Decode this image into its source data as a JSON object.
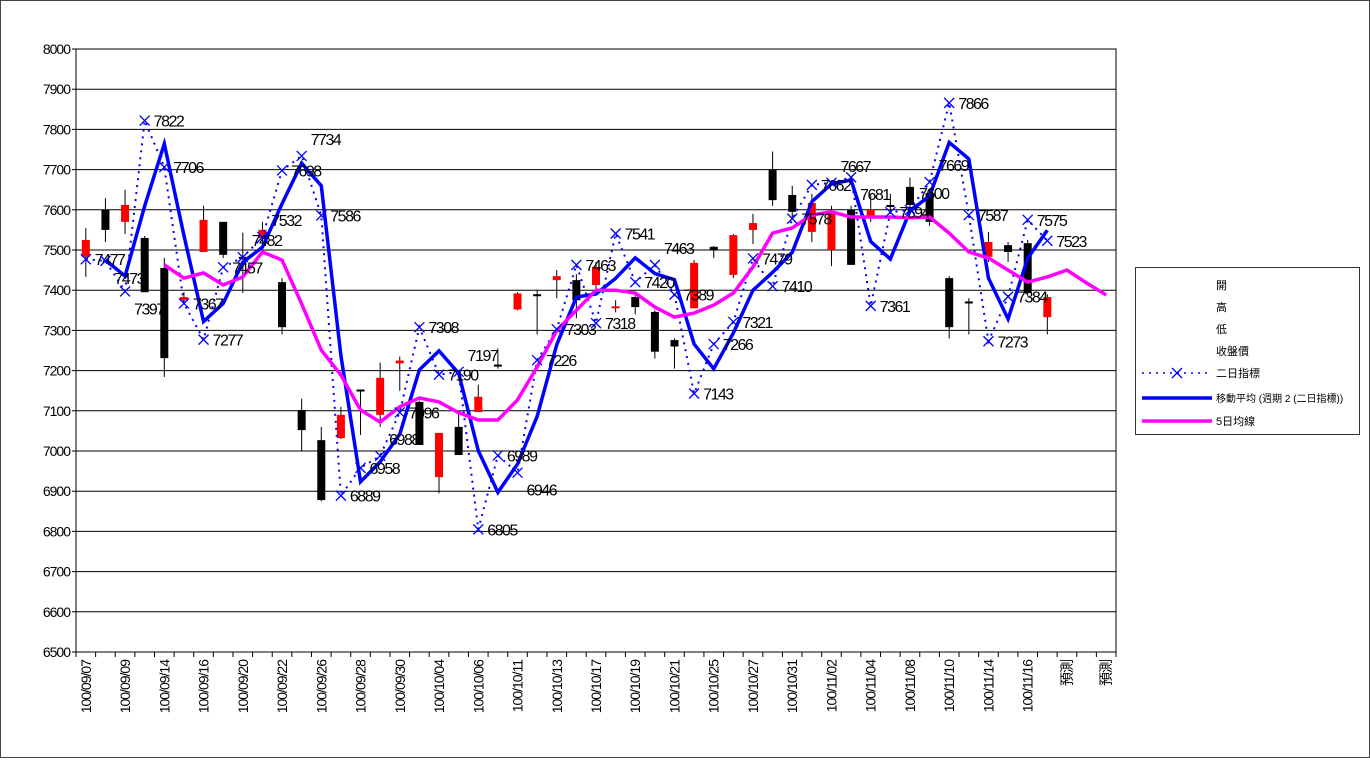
{
  "chart_data": {
    "type": "candlestick",
    "title": "",
    "ylim": [
      6500,
      8000
    ],
    "y_ticks": [
      "6500",
      "6600",
      "6700",
      "6800",
      "6900",
      "7000",
      "7100",
      "7200",
      "7300",
      "7400",
      "7500",
      "7600",
      "7700",
      "7800",
      "7900",
      "8000"
    ],
    "grid": true,
    "category_count": 53,
    "x_tick_labels": [
      {
        "index": 0,
        "label": "100/09/07"
      },
      {
        "index": 2,
        "label": "100/09/09"
      },
      {
        "index": 4,
        "label": "100/09/14"
      },
      {
        "index": 6,
        "label": "100/09/16"
      },
      {
        "index": 8,
        "label": "100/09/20"
      },
      {
        "index": 10,
        "label": "100/09/22"
      },
      {
        "index": 12,
        "label": "100/09/26"
      },
      {
        "index": 14,
        "label": "100/09/28"
      },
      {
        "index": 16,
        "label": "100/09/30"
      },
      {
        "index": 18,
        "label": "100/10/04"
      },
      {
        "index": 20,
        "label": "100/10/06"
      },
      {
        "index": 22,
        "label": "100/10/11"
      },
      {
        "index": 24,
        "label": "100/10/13"
      },
      {
        "index": 26,
        "label": "100/10/17"
      },
      {
        "index": 28,
        "label": "100/10/19"
      },
      {
        "index": 30,
        "label": "100/10/21"
      },
      {
        "index": 32,
        "label": "100/10/25"
      },
      {
        "index": 34,
        "label": "100/10/27"
      },
      {
        "index": 36,
        "label": "100/10/31"
      },
      {
        "index": 38,
        "label": "100/11/02"
      },
      {
        "index": 40,
        "label": "100/11/04"
      },
      {
        "index": 42,
        "label": "100/11/08"
      },
      {
        "index": 44,
        "label": "100/11/10"
      },
      {
        "index": 46,
        "label": "100/11/14"
      },
      {
        "index": 48,
        "label": "100/11/16"
      },
      {
        "index": 50,
        "label": "預測"
      },
      {
        "index": 52,
        "label": "預測"
      }
    ],
    "ohlc": [
      [
        7483,
        7555,
        7433,
        7525
      ],
      [
        7600,
        7629,
        7520,
        7550
      ],
      [
        7570,
        7650,
        7540,
        7612
      ],
      [
        7530,
        7535,
        7395,
        7395
      ],
      [
        7455,
        7480,
        7184,
        7231
      ],
      [
        7375,
        7395,
        7370,
        7383
      ],
      [
        7495,
        7610,
        7495,
        7575
      ],
      [
        7570,
        7570,
        7480,
        7488
      ],
      [
        7483,
        7543,
        7393,
        7480
      ],
      [
        7530,
        7570,
        7520,
        7550
      ],
      [
        7420,
        7430,
        7290,
        7308
      ],
      [
        7102,
        7130,
        7000,
        7052
      ],
      [
        7027,
        7060,
        6875,
        6878
      ],
      [
        7032,
        7110,
        7030,
        7090
      ],
      [
        7153,
        7153,
        7040,
        7148
      ],
      [
        7090,
        7220,
        7060,
        7182
      ],
      [
        7218,
        7235,
        7150,
        7225
      ],
      [
        7122,
        7125,
        7015,
        7015
      ],
      [
        6935,
        7045,
        6895,
        7045
      ],
      [
        7060,
        7100,
        6990,
        6990
      ],
      [
        7097,
        7165,
        7097,
        7135
      ],
      [
        7215,
        7255,
        7205,
        7210
      ],
      [
        7352,
        7395,
        7350,
        7392
      ],
      [
        7390,
        7400,
        7290,
        7385
      ],
      [
        7425,
        7450,
        7380,
        7435
      ],
      [
        7425,
        7440,
        7330,
        7375
      ],
      [
        7413,
        7470,
        7400,
        7458
      ],
      [
        7355,
        7375,
        7345,
        7360
      ],
      [
        7383,
        7395,
        7340,
        7358
      ],
      [
        7346,
        7350,
        7230,
        7247
      ],
      [
        7276,
        7280,
        7205,
        7260
      ],
      [
        7355,
        7475,
        7355,
        7468
      ],
      [
        7508,
        7510,
        7480,
        7500
      ],
      [
        7438,
        7540,
        7430,
        7537
      ],
      [
        7550,
        7590,
        7515,
        7567
      ],
      [
        7699,
        7745,
        7610,
        7624
      ],
      [
        7637,
        7660,
        7580,
        7595
      ],
      [
        7545,
        7640,
        7520,
        7617
      ],
      [
        7500,
        7610,
        7460,
        7592
      ],
      [
        7600,
        7610,
        7463,
        7463
      ],
      [
        7580,
        7640,
        7570,
        7600
      ],
      [
        7612,
        7640,
        7590,
        7610
      ],
      [
        7657,
        7680,
        7600,
        7612
      ],
      [
        7642,
        7650,
        7560,
        7570
      ],
      [
        7430,
        7435,
        7280,
        7308
      ],
      [
        7372,
        7380,
        7290,
        7370
      ],
      [
        7483,
        7545,
        7470,
        7520
      ],
      [
        7512,
        7520,
        7470,
        7495
      ],
      [
        7517,
        7525,
        7385,
        7393
      ],
      [
        7333,
        7390,
        7290,
        7383
      ]
    ],
    "indicator_2day": [
      7477,
      7473,
      7397,
      7822,
      7706,
      7367,
      7277,
      7457,
      7482,
      7532,
      7698,
      7734,
      7586,
      6889,
      6958,
      6988,
      7096,
      7308,
      7190,
      7197,
      6805,
      6989,
      6946,
      7226,
      7303,
      7463,
      7318,
      7541,
      7420,
      7463,
      7389,
      7143,
      7266,
      7321,
      7479,
      7410,
      7578,
      7662,
      7667,
      7681,
      7361,
      7594,
      7600,
      7669,
      7866,
      7587,
      7273,
      7384,
      7575,
      7523
    ],
    "ma_period": 2,
    "ma5_start_index": 4,
    "ma5": [
      7463,
      7430,
      7443,
      7413,
      7433,
      7495,
      7475,
      7366,
      7251,
      7189,
      7102,
      7072,
      7110,
      7132,
      7122,
      7095,
      7077,
      7077,
      7127,
      7209,
      7300,
      7350,
      7400,
      7400,
      7393,
      7358,
      7333,
      7343,
      7363,
      7393,
      7458,
      7542,
      7555,
      7587,
      7595,
      7582,
      7582,
      7582,
      7580,
      7582,
      7542,
      7495,
      7480,
      7450,
      7420,
      7433,
      7450,
      7418,
      7388
    ],
    "colors": {
      "up": "#ff0000",
      "down": "#000000",
      "indicator": "#0000ff",
      "ma": "#0000ff",
      "ma5": "#ff00ff",
      "grid": "#000000"
    },
    "legend": {
      "placement": "right",
      "entries": [
        "開",
        "高",
        "低",
        "收盤價",
        "二日指標",
        "移動平均 (週期 2 (二日指標))",
        "5日均線"
      ]
    }
  }
}
